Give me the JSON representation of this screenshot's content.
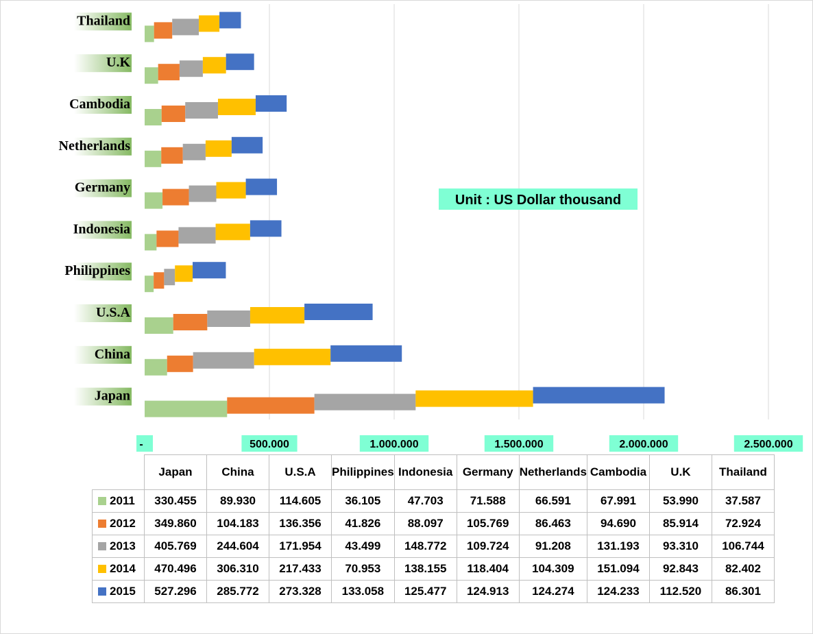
{
  "chart_data": {
    "type": "bar",
    "orientation": "horizontal",
    "stacked": true,
    "categories": [
      "Japan",
      "China",
      "U.S.A",
      "Philippines",
      "Indonesia",
      "Germany",
      "Netherlands",
      "Cambodia",
      "U.K",
      "Thailand"
    ],
    "table_headers": [
      "Japan",
      "China",
      "U.S.A",
      "Philippines",
      "Indonesia",
      "Germany",
      "Netherlands",
      "Cambodia",
      "U.K",
      "Thailand"
    ],
    "series": [
      {
        "name": "2011",
        "color": "#a9d18e",
        "values": [
          330.455,
          89.93,
          114.605,
          36.105,
          47.703,
          71.588,
          66.591,
          67.991,
          53.99,
          37.587
        ],
        "labels": [
          "330.455",
          "89.930",
          "114.605",
          "36.105",
          "47.703",
          "71.588",
          "66.591",
          "67.991",
          "53.990",
          "37.587"
        ]
      },
      {
        "name": "2012",
        "color": "#ed7d31",
        "values": [
          349.86,
          104.183,
          136.356,
          41.826,
          88.097,
          105.769,
          86.463,
          94.69,
          85.914,
          72.924
        ],
        "labels": [
          "349.860",
          "104.183",
          "136.356",
          "41.826",
          "88.097",
          "105.769",
          "86.463",
          "94.690",
          "85.914",
          "72.924"
        ]
      },
      {
        "name": "2013",
        "color": "#a5a5a5",
        "values": [
          405.769,
          244.604,
          171.954,
          43.499,
          148.772,
          109.724,
          91.208,
          131.193,
          93.31,
          106.744
        ],
        "labels": [
          "405.769",
          "244.604",
          "171.954",
          "43.499",
          "148.772",
          "109.724",
          "91.208",
          "131.193",
          "93.310",
          "106.744"
        ]
      },
      {
        "name": "2014",
        "color": "#ffc000",
        "values": [
          470.496,
          306.31,
          217.433,
          70.953,
          138.155,
          118.404,
          104.309,
          151.094,
          92.843,
          82.402
        ],
        "labels": [
          "470.496",
          "306.310",
          "217.433",
          "70.953",
          "138.155",
          "118.404",
          "104.309",
          "151.094",
          "92.843",
          "82.402"
        ]
      },
      {
        "name": "2015",
        "color": "#4472c4",
        "values": [
          527.296,
          285.772,
          273.328,
          133.058,
          125.477,
          124.913,
          124.274,
          124.233,
          112.52,
          86.301
        ],
        "labels": [
          "527.296",
          "285.772",
          "273.328",
          "133.058",
          "125.477",
          "124.913",
          "124.274",
          "124.233",
          "112.520",
          "86.301"
        ]
      }
    ],
    "xlim": [
      0,
      2500
    ],
    "x_ticks": [
      0,
      500,
      1000,
      1500,
      2000,
      2500
    ],
    "x_tick_labels": [
      "-",
      "500.000",
      "1.000.000",
      "1.500.000",
      "2.000.000",
      "2.500.000"
    ],
    "annotation": "Unit : US Dollar thousand",
    "grid": "vertical",
    "data_table": true,
    "colors": {
      "category_label_shadow": "#70ad47",
      "tick_label_background": "#7fffd4",
      "annotation_background": "#7fffd4",
      "gridline": "#d9d9d9"
    }
  }
}
